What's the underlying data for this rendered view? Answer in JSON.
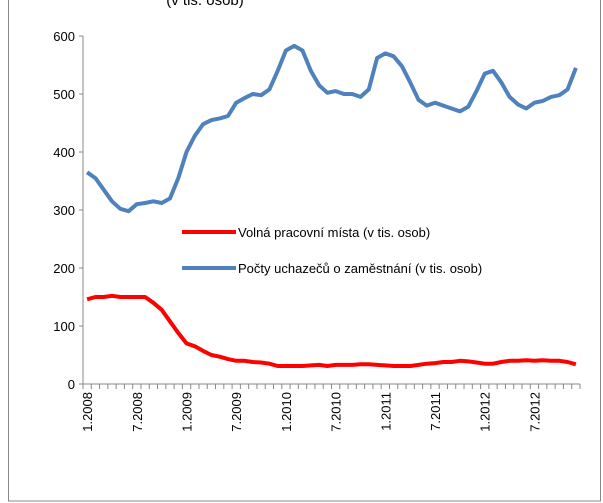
{
  "chart_data": {
    "type": "line",
    "title": "(v tis. osob)",
    "categories": [
      "1.2008",
      null,
      null,
      null,
      null,
      null,
      "7.2008",
      null,
      null,
      null,
      null,
      null,
      "1.2009",
      null,
      null,
      null,
      null,
      null,
      "7.2009",
      null,
      null,
      null,
      null,
      null,
      "1.2010",
      null,
      null,
      null,
      null,
      null,
      "7.2010",
      null,
      null,
      null,
      null,
      null,
      "1.2011",
      null,
      null,
      null,
      null,
      null,
      "7.2011",
      null,
      null,
      null,
      null,
      null,
      "1.2012",
      null,
      null,
      null,
      null,
      null,
      "7.2012",
      null,
      null,
      null,
      null,
      null
    ],
    "series": [
      {
        "name": "Volná pracovní místa (v tis. osob)",
        "color": "#ff0000",
        "values": [
          146,
          150,
          150,
          152,
          150,
          150,
          150,
          150,
          140,
          128,
          108,
          88,
          70,
          65,
          57,
          50,
          47,
          43,
          40,
          40,
          38,
          37,
          35,
          31,
          31,
          31,
          31,
          32,
          33,
          31,
          33,
          33,
          33,
          34,
          34,
          33,
          32,
          31,
          31,
          31,
          33,
          35,
          36,
          38,
          38,
          40,
          39,
          37,
          35,
          35,
          38,
          40,
          40,
          41,
          40,
          41,
          40,
          40,
          38,
          34
        ]
      },
      {
        "name": "Počty uchazečů o zaměstnání (v tis. osob)",
        "color": "#4f81bd",
        "values": [
          365,
          355,
          335,
          315,
          302,
          298,
          310,
          312,
          315,
          312,
          320,
          355,
          400,
          428,
          448,
          455,
          458,
          462,
          485,
          493,
          500,
          498,
          508,
          540,
          575,
          583,
          575,
          540,
          515,
          502,
          505,
          500,
          500,
          495,
          508,
          562,
          570,
          565,
          548,
          520,
          490,
          480,
          485,
          480,
          475,
          470,
          478,
          505,
          535,
          540,
          520,
          495,
          482,
          475,
          485,
          488,
          495,
          498,
          508,
          545
        ]
      }
    ],
    "ylim": [
      0,
      600
    ],
    "yticks": [
      0,
      100,
      200,
      300,
      400,
      500,
      600
    ]
  }
}
